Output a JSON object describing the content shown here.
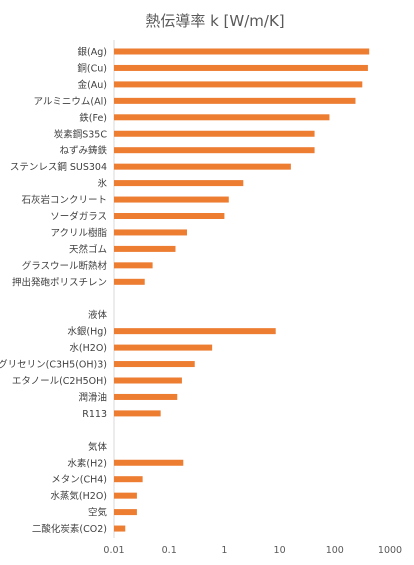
{
  "chart_data": {
    "type": "bar",
    "orientation": "horizontal",
    "title": "熱伝導率 k [W/m/K]",
    "xscale": "log",
    "xlim": [
      0.01,
      1000
    ],
    "xticks": [
      "0.01",
      "0.1",
      "1",
      "10",
      "100",
      "1000"
    ],
    "grid": false,
    "legend": "none",
    "bar_color": "#ED7D31",
    "categories": [
      "銀(Ag)",
      "銅(Cu)",
      "金(Au)",
      "アルミニウム(Al)",
      "鉄(Fe)",
      "炭素鋼S35C",
      "ねずみ鋳鉄",
      "ステンレス鋼 SUS304",
      "氷",
      "石灰岩コンクリート",
      "ソーダガラス",
      "アクリル樹脂",
      "天然ゴム",
      "グラスウール断熱材",
      "押出発砲ポリスチレン",
      "",
      "液体",
      "水銀(Hg)",
      "水(H2O)",
      "グリセリン(C3H5(OH)3)",
      "エタノール(C2H5OH)",
      "潤滑油",
      "R113",
      "",
      "気体",
      "水素(H2)",
      "メタン(CH4)",
      "水蒸気(H2O)",
      "空気",
      "二酸化炭素(CO2)"
    ],
    "values": [
      420,
      398,
      315,
      237,
      80,
      43,
      43,
      16,
      2.2,
      1.2,
      1.0,
      0.21,
      0.13,
      0.05,
      0.036,
      null,
      null,
      8.5,
      0.6,
      0.29,
      0.17,
      0.14,
      0.07,
      null,
      null,
      0.18,
      0.033,
      0.026,
      0.026,
      0.016
    ]
  }
}
